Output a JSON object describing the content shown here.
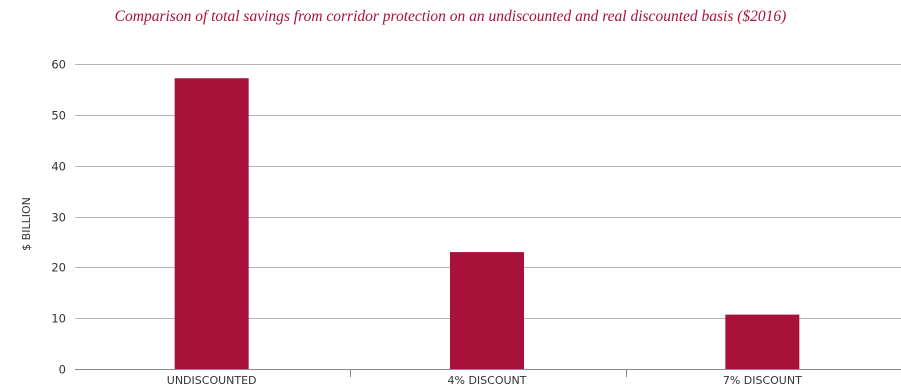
{
  "chart_data": {
    "type": "bar",
    "title": "Comparison of total savings from corridor protection on an undiscounted and real discounted basis ($2016)",
    "xlabel": "",
    "ylabel": "$ BILLION",
    "categories": [
      "UNDISCOUNTED",
      "4% DISCOUNT",
      "7% DISCOUNT"
    ],
    "values": [
      57.2,
      23.0,
      10.7
    ],
    "ylim": [
      0,
      60
    ],
    "yticks": [
      0,
      10,
      20,
      30,
      40,
      50,
      60
    ],
    "grid": true,
    "bar_color": "#a8123a",
    "title_color": "#a8123a"
  }
}
